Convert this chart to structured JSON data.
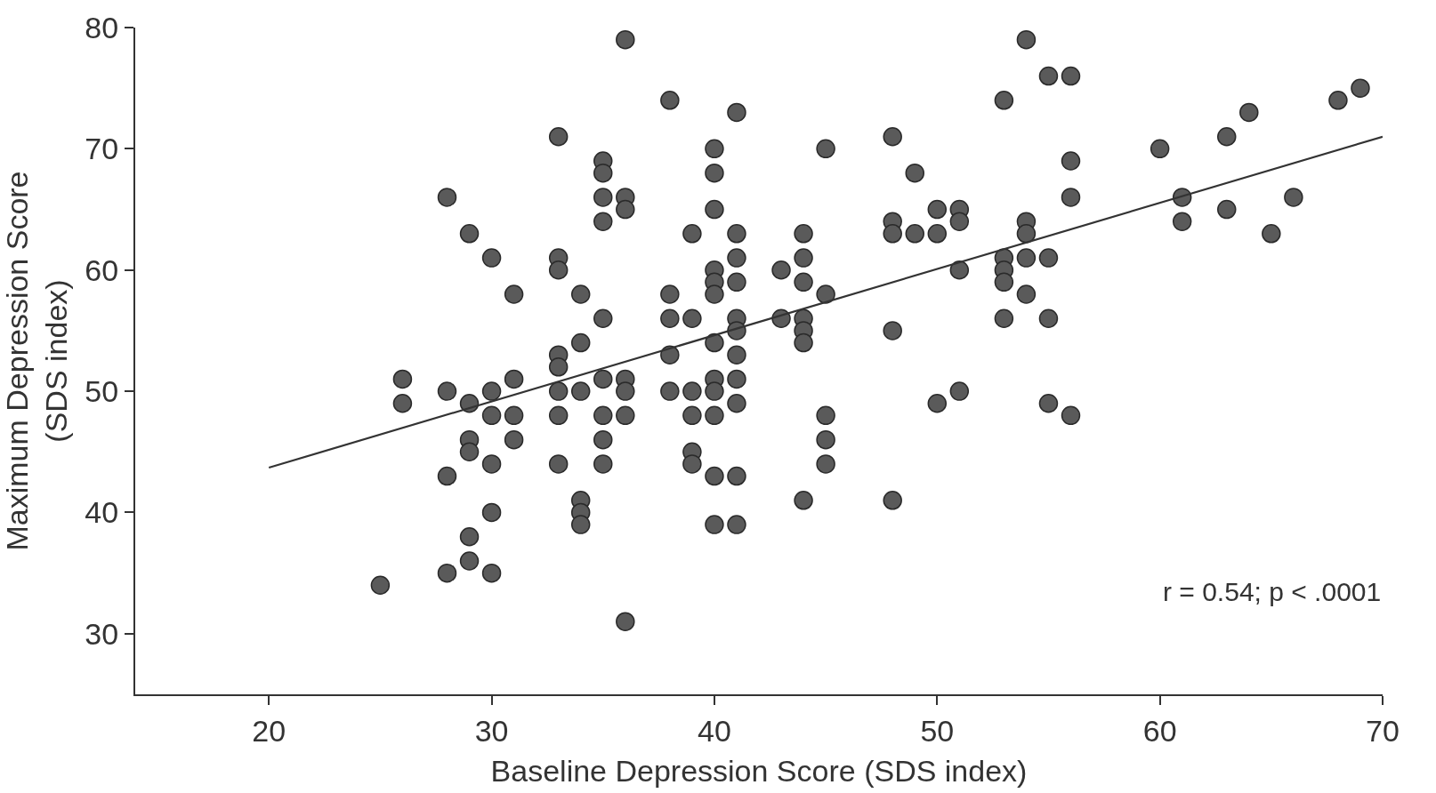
{
  "chart_data": {
    "type": "scatter",
    "xlabel": "Baseline Depression Score (SDS index)",
    "ylabel": "Maximum Depression Score\n(SDS index)",
    "xlim": [
      14,
      70
    ],
    "xticks": [
      20,
      30,
      40,
      50,
      60,
      70
    ],
    "ylim": [
      25,
      80
    ],
    "yticks": [
      30,
      40,
      50,
      60,
      70,
      80
    ],
    "marker": "circle",
    "annotations": [
      "r = 0.54; p < .0001"
    ],
    "series": [
      {
        "color": "#5a5a5a",
        "x": [
          25,
          26,
          26,
          28,
          28,
          28,
          28,
          29,
          29,
          29,
          29,
          29,
          29,
          30,
          30,
          30,
          30,
          30,
          30,
          31,
          31,
          31,
          31,
          33,
          33,
          33,
          33,
          33,
          33,
          33,
          33,
          34,
          34,
          34,
          34,
          34,
          34,
          35,
          35,
          35,
          35,
          35,
          35,
          35,
          35,
          35,
          36,
          36,
          36,
          36,
          36,
          36,
          36,
          38,
          38,
          38,
          38,
          38,
          39,
          39,
          39,
          39,
          39,
          39,
          40,
          40,
          40,
          40,
          40,
          40,
          40,
          40,
          40,
          40,
          40,
          40,
          41,
          41,
          41,
          41,
          41,
          41,
          41,
          41,
          41,
          41,
          41,
          43,
          43,
          44,
          44,
          44,
          44,
          44,
          44,
          44,
          45,
          45,
          45,
          45,
          45,
          48,
          48,
          48,
          48,
          48,
          49,
          49,
          50,
          50,
          50,
          51,
          51,
          51,
          51,
          53,
          53,
          53,
          53,
          53,
          54,
          54,
          54,
          54,
          54,
          55,
          55,
          55,
          55,
          56,
          56,
          56,
          56,
          60,
          61,
          61,
          63,
          63,
          64,
          65,
          66,
          68,
          69
        ],
        "values": [
          34,
          51,
          49,
          66,
          50,
          43,
          35,
          63,
          49,
          46,
          45,
          38,
          36,
          61,
          50,
          48,
          44,
          40,
          35,
          58,
          51,
          48,
          46,
          71,
          61,
          60,
          53,
          52,
          50,
          48,
          44,
          58,
          54,
          50,
          41,
          40,
          39,
          69,
          68,
          66,
          64,
          56,
          51,
          48,
          46,
          44,
          79,
          66,
          65,
          51,
          50,
          48,
          31,
          74,
          58,
          56,
          53,
          50,
          63,
          56,
          50,
          48,
          45,
          44,
          70,
          68,
          65,
          60,
          59,
          58,
          54,
          51,
          50,
          48,
          43,
          39,
          73,
          63,
          61,
          59,
          56,
          55,
          53,
          51,
          49,
          43,
          39,
          60,
          56,
          63,
          61,
          59,
          56,
          55,
          54,
          41,
          70,
          58,
          48,
          46,
          44,
          71,
          64,
          63,
          55,
          41,
          68,
          63,
          65,
          63,
          49,
          65,
          64,
          60,
          50,
          74,
          61,
          60,
          59,
          56,
          79,
          64,
          63,
          61,
          58,
          76,
          61,
          56,
          49,
          76,
          69,
          66,
          48,
          70,
          66,
          64,
          71,
          65,
          73,
          63,
          66,
          74,
          75
        ]
      },
      {
        "type": "line",
        "color": "#333333",
        "line_style": "solid",
        "marker": "none",
        "x": [
          20,
          70
        ],
        "values": [
          43.7,
          71
        ]
      }
    ]
  }
}
